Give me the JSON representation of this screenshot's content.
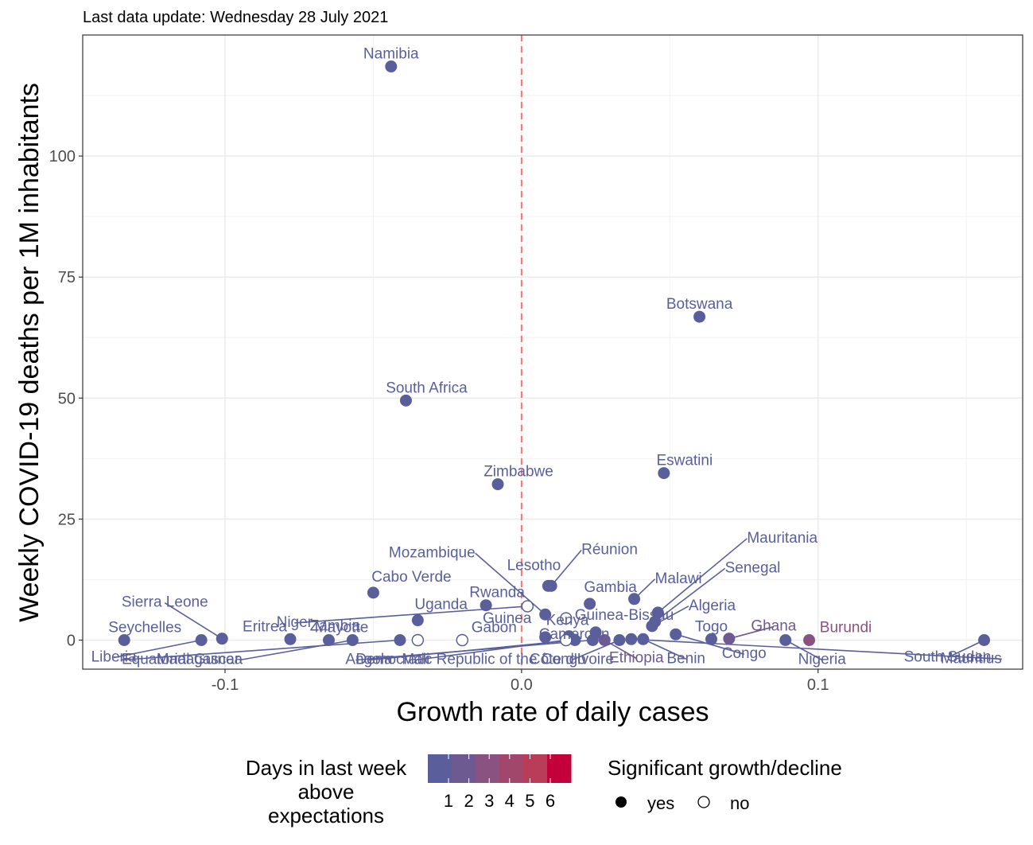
{
  "chart_data": {
    "type": "scatter",
    "subtitle": "Last data update: Wednesday 28 July 2021",
    "xlabel": "Growth rate of daily cases",
    "ylabel": "Weekly COVID-19 deaths per 1M inhabitants",
    "xlim": [
      -0.148,
      0.169
    ],
    "ylim": [
      -6,
      125
    ],
    "x_ticks": [
      -0.1,
      0.0,
      0.1
    ],
    "x_tick_labels": [
      "-0.1",
      "0.0",
      "0.1"
    ],
    "y_ticks": [
      0,
      25,
      50,
      75,
      100
    ],
    "y_tick_labels": [
      "0",
      "25",
      "50",
      "75",
      "100"
    ],
    "reference_line": {
      "x": 0,
      "style": "dashed",
      "color": "#f8766d"
    },
    "grid": true,
    "legend_color": {
      "title": "Days in last week above expectations",
      "title_lines": [
        "Days in last week",
        "above",
        "expectations"
      ],
      "labels": [
        "1",
        "2",
        "3",
        "4",
        "5",
        "6"
      ],
      "colors": [
        "#5a5f9c",
        "#6c5a90",
        "#8a5280",
        "#a2476c",
        "#b93c58",
        "#c4003a"
      ]
    },
    "legend_shape": {
      "title": "Significant growth/decline",
      "items": [
        {
          "label": "yes",
          "filled": true
        },
        {
          "label": "no",
          "filled": false
        }
      ]
    },
    "points": [
      {
        "name": "Namibia",
        "x": -0.044,
        "y": 118.5,
        "days": 1,
        "sig": true
      },
      {
        "name": "Botswana",
        "x": 0.06,
        "y": 66.8,
        "days": 1,
        "sig": true
      },
      {
        "name": "South Africa",
        "x": -0.039,
        "y": 49.5,
        "days": 1,
        "sig": true
      },
      {
        "name": "Zimbabwe",
        "x": -0.008,
        "y": 32.2,
        "days": 1,
        "sig": true
      },
      {
        "name": "Eswatini",
        "x": 0.048,
        "y": 34.5,
        "days": 1,
        "sig": true
      },
      {
        "name": "Cabo Verde",
        "x": -0.05,
        "y": 9.8,
        "days": 1,
        "sig": true
      },
      {
        "name": "Lesotho",
        "x": 0.009,
        "y": 11.2,
        "days": 1,
        "sig": true
      },
      {
        "name": "Réunion",
        "x": 0.01,
        "y": 11.2,
        "days": 1,
        "sig": true
      },
      {
        "name": "Gambia",
        "x": 0.023,
        "y": 7.5,
        "days": 1,
        "sig": true
      },
      {
        "name": "Malawi",
        "x": 0.038,
        "y": 8.5,
        "days": 1,
        "sig": true
      },
      {
        "name": "Mozambique",
        "x": 0.008,
        "y": 5.3,
        "days": 1,
        "sig": true
      },
      {
        "name": "Rwanda",
        "x": -0.012,
        "y": 7.2,
        "days": 1,
        "sig": true
      },
      {
        "name": "Uganda",
        "x": -0.035,
        "y": 4.1,
        "days": 1,
        "sig": true
      },
      {
        "name": "Mauritania",
        "x": 0.046,
        "y": 5.7,
        "days": 1,
        "sig": true
      },
      {
        "name": "Senegal",
        "x": 0.045,
        "y": 3.8,
        "days": 1,
        "sig": true
      },
      {
        "name": "Algeria",
        "x": 0.044,
        "y": 2.9,
        "days": 1,
        "sig": true
      },
      {
        "name": "Guinea-Bissau",
        "x": 0.025,
        "y": 1.6,
        "days": 1,
        "sig": true
      },
      {
        "name": "Kenya",
        "x": 0.016,
        "y": 0.8,
        "days": 1,
        "sig": true
      },
      {
        "name": "Guinea",
        "x": 0.008,
        "y": 0.6,
        "days": 1,
        "sig": true
      },
      {
        "name": "Zambia",
        "x": -0.035,
        "y": 0.0,
        "days": 1,
        "sig": false
      },
      {
        "name": "Sierra Leone",
        "x": -0.101,
        "y": 0.3,
        "days": 1,
        "sig": true
      },
      {
        "name": "Seychelles",
        "x": -0.134,
        "y": 0.0,
        "days": 1,
        "sig": true
      },
      {
        "name": "Liberia",
        "x": -0.108,
        "y": 0.0,
        "days": 1,
        "sig": true
      },
      {
        "name": "Eritrea",
        "x": -0.078,
        "y": 0.2,
        "days": 1,
        "sig": true
      },
      {
        "name": "Mayotte",
        "x": -0.065,
        "y": 0.0,
        "days": 1,
        "sig": true
      },
      {
        "name": "Gabon",
        "x": -0.02,
        "y": 0.0,
        "days": 1,
        "sig": false
      },
      {
        "name": "Equatorial Guinea",
        "x": -0.041,
        "y": 0.0,
        "days": 1,
        "sig": true
      },
      {
        "name": "Madagascar",
        "x": -0.057,
        "y": 0.0,
        "days": 1,
        "sig": true
      },
      {
        "name": "Niger",
        "x": 0.002,
        "y": 7.0,
        "days": 1,
        "sig": false
      },
      {
        "name": "Angola",
        "x": 0.018,
        "y": 0.0,
        "days": 1,
        "sig": true
      },
      {
        "name": "Democratic Republic of the Congo",
        "x": 0.024,
        "y": 0.0,
        "days": 1,
        "sig": true
      },
      {
        "name": "Mali",
        "x": 0.015,
        "y": 0.0,
        "days": 1,
        "sig": false
      },
      {
        "name": "Côte d'Ivoire",
        "x": 0.033,
        "y": 0.0,
        "days": 1,
        "sig": true
      },
      {
        "name": "Cameroon",
        "x": 0.015,
        "y": 4.5,
        "days": 1,
        "sig": false
      },
      {
        "name": "Ethiopia",
        "x": 0.028,
        "y": 0.0,
        "days": 2,
        "sig": true
      },
      {
        "name": "Benin",
        "x": 0.041,
        "y": 0.2,
        "days": 1,
        "sig": true
      },
      {
        "name": "Togo",
        "x": 0.064,
        "y": 0.2,
        "days": 1,
        "sig": true
      },
      {
        "name": "Congo",
        "x": 0.052,
        "y": 1.2,
        "days": 1,
        "sig": true
      },
      {
        "name": "Ghana",
        "x": 0.07,
        "y": 0.3,
        "days": 2,
        "sig": true
      },
      {
        "name": "Nigeria",
        "x": 0.089,
        "y": 0.0,
        "days": 1,
        "sig": true
      },
      {
        "name": "Burundi",
        "x": 0.097,
        "y": 0.0,
        "days": 3,
        "sig": true
      },
      {
        "name": "Mauritius",
        "x": 0.037,
        "y": 0.2,
        "days": 1,
        "sig": true
      },
      {
        "name": "South Sudan",
        "x": 0.156,
        "y": 0.0,
        "days": 1,
        "sig": true
      }
    ]
  }
}
